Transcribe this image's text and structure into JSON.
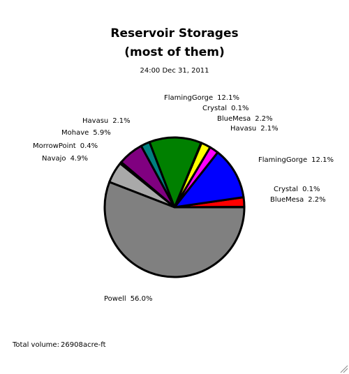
{
  "chart_data": {
    "type": "pie",
    "title": "Reservoir Storages",
    "subtitle": "(most of them)",
    "date": "24:00 Dec 31, 2011",
    "categories": [
      "Crystal",
      "BlueMesa",
      "FlamingGorge",
      "Havasu",
      "BlueMesa",
      "Crystal",
      "FlamingGorge",
      "Havasu",
      "Mohave",
      "MorrowPoint",
      "Navajo",
      "Powell"
    ],
    "values": [
      0.1,
      2.2,
      12.1,
      2.1,
      2.2,
      0.1,
      12.1,
      2.1,
      5.9,
      0.4,
      4.9,
      56.0
    ],
    "value_labels": [
      "0.1%",
      "2.2%",
      "12.1%",
      "2.1%",
      "2.2%",
      "0.1%",
      "12.1%",
      "2.1%",
      "5.9%",
      "0.4%",
      "4.9%",
      "56.0%"
    ],
    "colors": [
      "#ff8000",
      "#ff0000",
      "#0000ff",
      "#ff00ff",
      "#ffff00",
      "#00ffff",
      "#008000",
      "#008080",
      "#800080",
      "#000000",
      "#a9a9a9",
      "#808080"
    ],
    "total_label": "Total volume:",
    "total_volume": 26908,
    "total_unit": "acre-ft"
  }
}
